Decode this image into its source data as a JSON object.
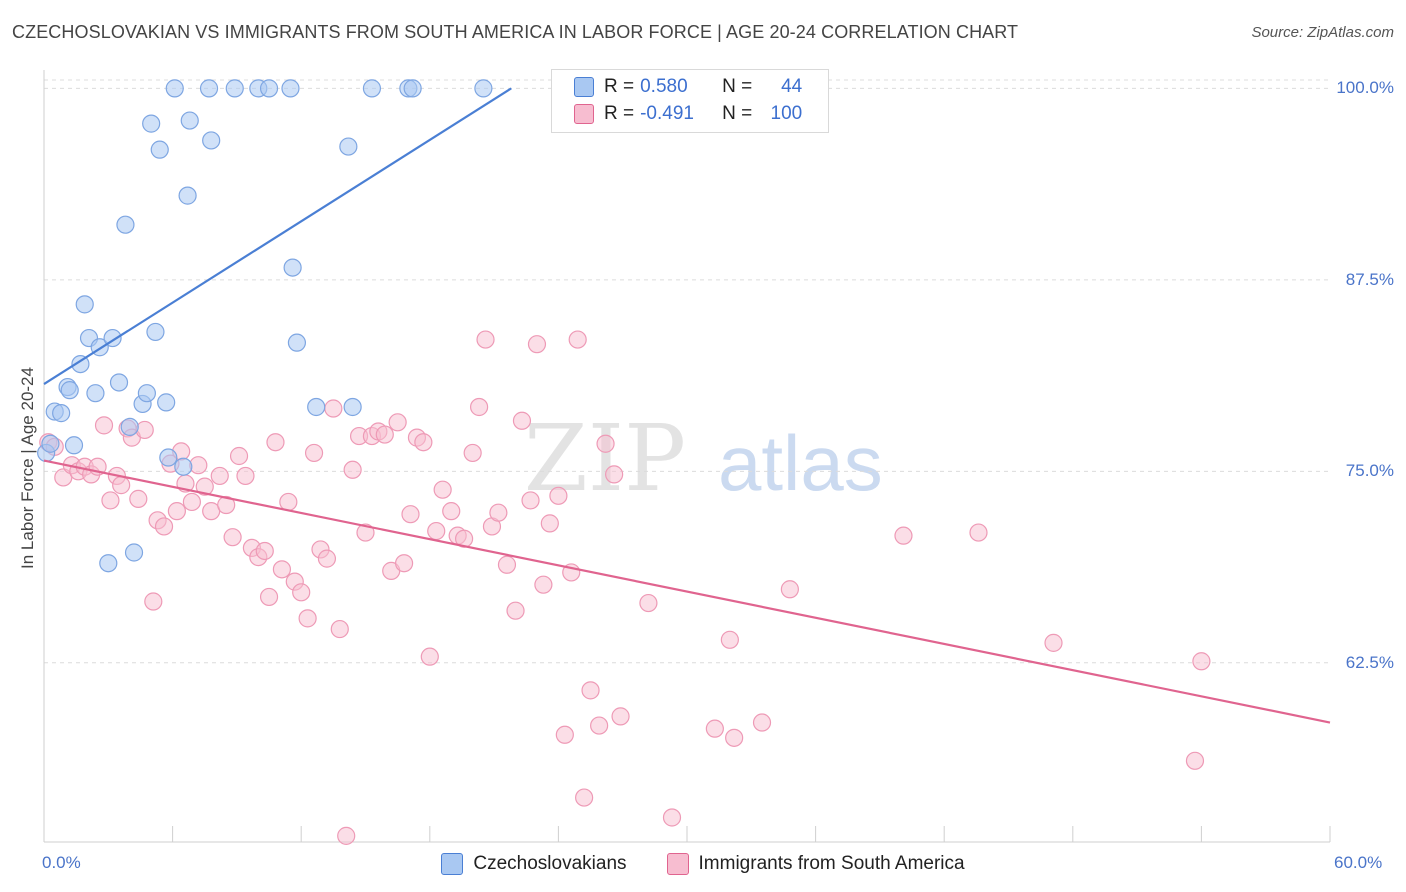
{
  "title": "CZECHOSLOVAKIAN VS IMMIGRANTS FROM SOUTH AMERICA IN LABOR FORCE | AGE 20-24 CORRELATION CHART",
  "source": "Source: ZipAtlas.com",
  "watermark": {
    "zip": "ZIP",
    "atlas": "atlas"
  },
  "colors": {
    "blue": "#4a7fd4",
    "blue_fill": "#a9c8f2",
    "pink": "#e0648f",
    "pink_fill": "#f7bdd0",
    "tick_text": "#4a74c9"
  },
  "stats": [
    {
      "r_label": "R =",
      "r": "0.580",
      "n_label": "N =",
      "n": "44"
    },
    {
      "r_label": "R =",
      "r": "-0.491",
      "n_label": "N =",
      "n": "100"
    }
  ],
  "legend": [
    "Czechoslovakians",
    "Immigrants from South America"
  ],
  "chart_data": {
    "type": "scatter",
    "ylabel": "In Labor Force | Age 20-24",
    "xlim": [
      0,
      60
    ],
    "ylim": [
      50.8,
      101.2
    ],
    "x_tick_labels": [
      "0.0%",
      "60.0%"
    ],
    "y_ticks": [
      100.0,
      87.5,
      75.0,
      62.5
    ],
    "y_tick_labels": [
      "100.0%",
      "87.5%",
      "75.0%",
      "62.5%"
    ],
    "grid": "horizontal dashed",
    "series": [
      {
        "name": "Czechoslovakians",
        "color": "#4a7fd4",
        "points": [
          [
            0.1,
            76.2
          ],
          [
            0.3,
            76.8
          ],
          [
            0.5,
            78.9
          ],
          [
            0.8,
            78.8
          ],
          [
            1.1,
            80.5
          ],
          [
            1.2,
            80.3
          ],
          [
            1.4,
            76.7
          ],
          [
            1.7,
            82.0
          ],
          [
            1.9,
            85.9
          ],
          [
            2.1,
            83.7
          ],
          [
            2.4,
            80.1
          ],
          [
            2.6,
            83.1
          ],
          [
            3.0,
            69.0
          ],
          [
            3.2,
            83.7
          ],
          [
            3.5,
            80.8
          ],
          [
            3.8,
            91.1
          ],
          [
            4.0,
            77.9
          ],
          [
            4.2,
            69.7
          ],
          [
            4.6,
            79.4
          ],
          [
            4.8,
            80.1
          ],
          [
            5.0,
            97.7
          ],
          [
            5.2,
            84.1
          ],
          [
            5.4,
            96.0
          ],
          [
            5.7,
            79.5
          ],
          [
            5.8,
            75.9
          ],
          [
            6.1,
            100.0
          ],
          [
            6.5,
            75.3
          ],
          [
            6.7,
            93.0
          ],
          [
            6.8,
            97.9
          ],
          [
            7.7,
            100.0
          ],
          [
            7.8,
            96.6
          ],
          [
            8.9,
            100.0
          ],
          [
            10.0,
            100.0
          ],
          [
            10.5,
            100.0
          ],
          [
            11.5,
            100.0
          ],
          [
            11.6,
            88.3
          ],
          [
            11.8,
            83.4
          ],
          [
            12.7,
            79.2
          ],
          [
            14.2,
            96.2
          ],
          [
            14.4,
            79.2
          ],
          [
            15.3,
            100.0
          ],
          [
            17.0,
            100.0
          ],
          [
            17.2,
            100.0
          ],
          [
            20.5,
            100.0
          ]
        ],
        "trend": {
          "x0": 0.0,
          "y0": 80.7,
          "x1": 21.8,
          "y1": 100.0
        }
      },
      {
        "name": "Immigrants from South America",
        "color": "#e0648f",
        "points": [
          [
            0.2,
            76.9
          ],
          [
            0.5,
            76.6
          ],
          [
            0.9,
            74.6
          ],
          [
            1.3,
            75.4
          ],
          [
            1.6,
            75.0
          ],
          [
            1.9,
            75.3
          ],
          [
            2.2,
            74.8
          ],
          [
            2.5,
            75.3
          ],
          [
            2.8,
            78.0
          ],
          [
            3.1,
            73.1
          ],
          [
            3.4,
            74.7
          ],
          [
            3.6,
            74.1
          ],
          [
            3.9,
            77.8
          ],
          [
            4.1,
            77.2
          ],
          [
            4.4,
            73.2
          ],
          [
            4.7,
            77.7
          ],
          [
            5.1,
            66.5
          ],
          [
            5.3,
            71.8
          ],
          [
            5.6,
            71.4
          ],
          [
            5.9,
            75.5
          ],
          [
            6.2,
            72.4
          ],
          [
            6.4,
            76.3
          ],
          [
            6.6,
            74.2
          ],
          [
            6.9,
            73.0
          ],
          [
            7.2,
            75.4
          ],
          [
            7.5,
            74.0
          ],
          [
            7.8,
            72.4
          ],
          [
            8.2,
            74.7
          ],
          [
            8.5,
            72.8
          ],
          [
            8.8,
            70.7
          ],
          [
            9.1,
            76.0
          ],
          [
            9.4,
            74.7
          ],
          [
            9.7,
            70.0
          ],
          [
            10.0,
            69.4
          ],
          [
            10.3,
            69.8
          ],
          [
            10.5,
            66.8
          ],
          [
            10.8,
            76.9
          ],
          [
            11.1,
            68.6
          ],
          [
            11.4,
            73.0
          ],
          [
            11.7,
            67.8
          ],
          [
            12.0,
            67.1
          ],
          [
            12.3,
            65.4
          ],
          [
            12.6,
            76.2
          ],
          [
            12.9,
            69.9
          ],
          [
            13.2,
            69.3
          ],
          [
            13.5,
            79.1
          ],
          [
            13.8,
            64.7
          ],
          [
            14.1,
            51.2
          ],
          [
            14.4,
            75.1
          ],
          [
            14.7,
            77.3
          ],
          [
            15.0,
            71.0
          ],
          [
            15.3,
            77.3
          ],
          [
            15.6,
            77.6
          ],
          [
            15.9,
            77.4
          ],
          [
            16.2,
            68.5
          ],
          [
            16.5,
            78.2
          ],
          [
            16.8,
            69.0
          ],
          [
            17.1,
            72.2
          ],
          [
            17.4,
            77.2
          ],
          [
            17.7,
            76.9
          ],
          [
            18.0,
            62.9
          ],
          [
            18.3,
            71.1
          ],
          [
            18.6,
            73.8
          ],
          [
            19.0,
            72.4
          ],
          [
            19.3,
            70.8
          ],
          [
            19.6,
            70.6
          ],
          [
            20.0,
            76.2
          ],
          [
            20.3,
            79.2
          ],
          [
            20.6,
            83.6
          ],
          [
            20.9,
            71.4
          ],
          [
            21.2,
            72.3
          ],
          [
            21.6,
            68.9
          ],
          [
            22.0,
            65.9
          ],
          [
            22.3,
            78.3
          ],
          [
            22.7,
            73.1
          ],
          [
            23.0,
            83.3
          ],
          [
            23.3,
            67.6
          ],
          [
            23.6,
            71.6
          ],
          [
            24.0,
            73.4
          ],
          [
            24.3,
            57.8
          ],
          [
            24.6,
            68.4
          ],
          [
            24.9,
            83.6
          ],
          [
            25.2,
            53.7
          ],
          [
            25.5,
            60.7
          ],
          [
            25.9,
            58.4
          ],
          [
            26.2,
            76.8
          ],
          [
            26.6,
            74.8
          ],
          [
            26.9,
            59.0
          ],
          [
            28.2,
            66.4
          ],
          [
            29.3,
            52.4
          ],
          [
            31.3,
            58.2
          ],
          [
            32.0,
            64.0
          ],
          [
            32.2,
            57.6
          ],
          [
            33.5,
            58.6
          ],
          [
            34.8,
            67.3
          ],
          [
            40.1,
            70.8
          ],
          [
            43.6,
            71.0
          ],
          [
            47.1,
            63.8
          ],
          [
            53.7,
            56.1
          ],
          [
            54.0,
            62.6
          ]
        ],
        "trend": {
          "x0": 0.0,
          "y0": 75.7,
          "x1": 60.0,
          "y1": 58.6
        }
      }
    ]
  }
}
